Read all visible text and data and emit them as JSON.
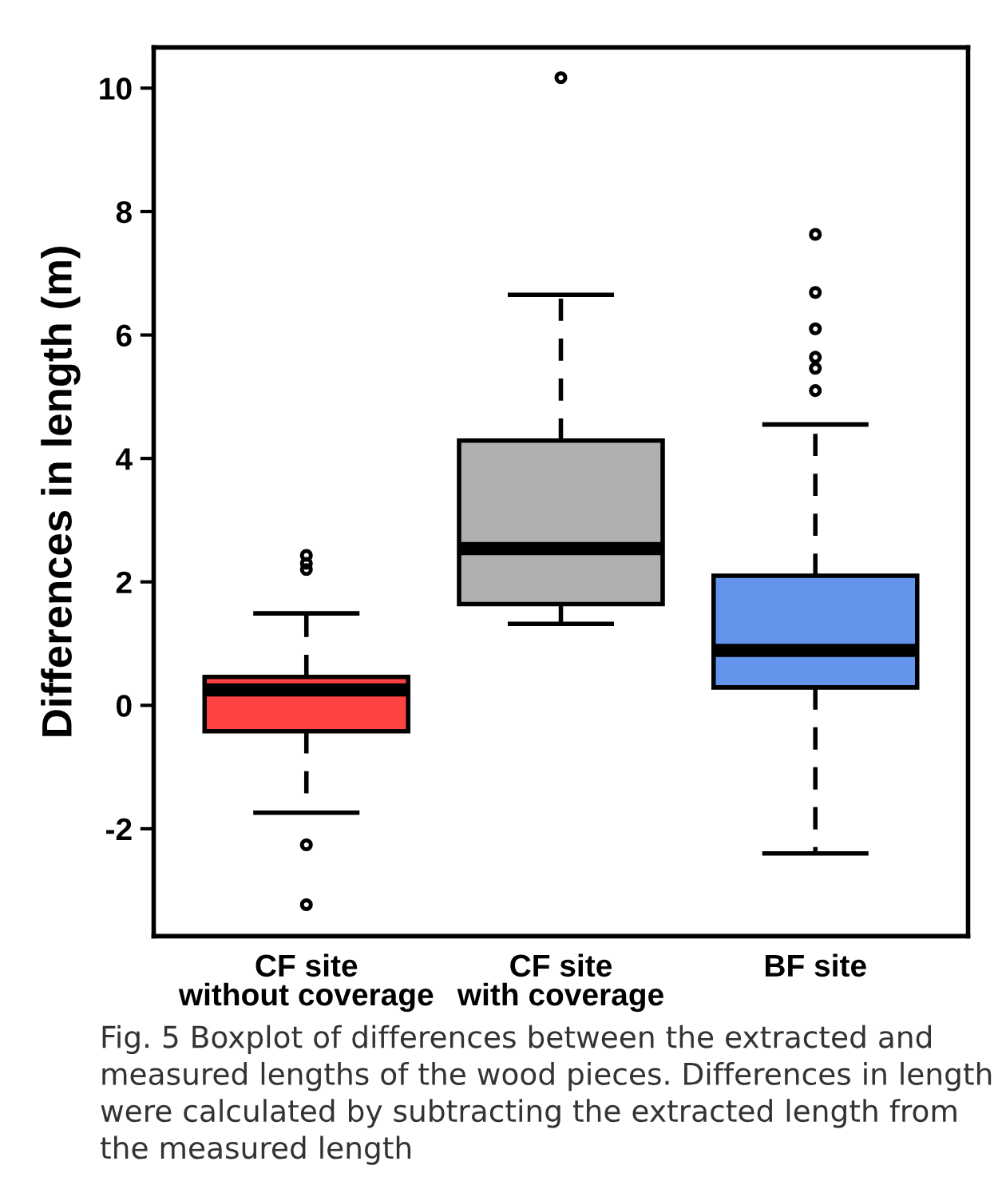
{
  "chart_data": {
    "type": "box",
    "ylabel": "Differences in length (m)",
    "categories": [
      "CF site\nwithout coverage",
      "CF site\nwith coverage",
      "BF site"
    ],
    "colors": [
      "#ff4242",
      "#b0b0b0",
      "#6495ed"
    ],
    "boxes": [
      {
        "low": -1.74,
        "q1": -0.42,
        "median": 0.25,
        "q3": 0.46,
        "high": 1.49,
        "outliers": [
          2.2,
          2.3,
          2.43,
          -2.26,
          -3.23
        ]
      },
      {
        "low": 1.32,
        "q1": 1.64,
        "median": 2.54,
        "q3": 4.29,
        "high": 6.65,
        "outliers": [
          10.17
        ]
      },
      {
        "low": -2.4,
        "q1": 0.29,
        "median": 0.89,
        "q3": 2.1,
        "high": 4.55,
        "outliers": [
          5.1,
          5.46,
          5.64,
          6.1,
          6.69,
          7.63
        ]
      }
    ],
    "ylim": [
      -3.74,
      10.66
    ],
    "yticks": [
      -2,
      0,
      2,
      4,
      6,
      8,
      10
    ],
    "grid": false,
    "annotations": [
      "Fig. 5 Boxplot of differences between the extracted and measured lengths of the wood pieces. Differences in length were calculated by subtracting the extracted length from the measured length"
    ]
  }
}
